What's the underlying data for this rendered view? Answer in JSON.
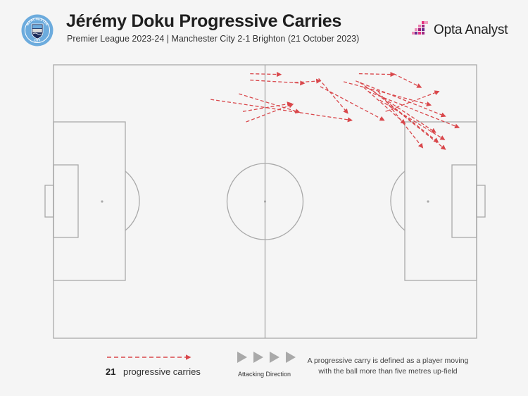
{
  "header": {
    "title": "Jérémy Doku Progressive Carries",
    "subtitle": "Premier League 2023-24 | Manchester City 2-1 Brighton (21 October 2023)",
    "badge_text_top": "MANCHESTER",
    "badge_text_bottom": "CITY",
    "brand": "Opta Analyst"
  },
  "legend": {
    "count": "21",
    "count_label": "progressive carries",
    "direction_label": "Attacking Direction",
    "definition": "A progressive carry is defined as a player moving with the ball more than five metres up-field"
  },
  "colors": {
    "arrow": "#d9474b",
    "pitch_line": "#a9a9a9",
    "club_blue": "#6cabdd",
    "brand_pink": "#e6317f"
  },
  "chart_data": {
    "type": "pitch-arrows",
    "pitch_length": 105,
    "pitch_width": 68,
    "attacking_direction": "right",
    "carries": [
      {
        "x1": 48.8,
        "y1": 2.2,
        "x2": 56.4,
        "y2": 2.4
      },
      {
        "x1": 48.8,
        "y1": 3.8,
        "x2": 62.2,
        "y2": 4.6
      },
      {
        "x1": 59.8,
        "y1": 4.4,
        "x2": 66.2,
        "y2": 4.0
      },
      {
        "x1": 65.8,
        "y1": 3.4,
        "x2": 73.0,
        "y2": 12.0
      },
      {
        "x1": 66.2,
        "y1": 5.4,
        "x2": 82.0,
        "y2": 13.8
      },
      {
        "x1": 75.8,
        "y1": 2.2,
        "x2": 84.6,
        "y2": 2.4
      },
      {
        "x1": 84.4,
        "y1": 2.2,
        "x2": 91.2,
        "y2": 5.6
      },
      {
        "x1": 72.0,
        "y1": 4.2,
        "x2": 93.6,
        "y2": 10.0
      },
      {
        "x1": 75.0,
        "y1": 4.0,
        "x2": 97.2,
        "y2": 12.8
      },
      {
        "x1": 76.0,
        "y1": 4.4,
        "x2": 94.8,
        "y2": 16.8
      },
      {
        "x1": 78.0,
        "y1": 6.6,
        "x2": 100.6,
        "y2": 15.6
      },
      {
        "x1": 79.2,
        "y1": 6.4,
        "x2": 95.4,
        "y2": 19.2
      },
      {
        "x1": 80.6,
        "y1": 6.6,
        "x2": 91.6,
        "y2": 20.6
      },
      {
        "x1": 81.0,
        "y1": 8.8,
        "x2": 97.0,
        "y2": 18.6
      },
      {
        "x1": 82.6,
        "y1": 9.2,
        "x2": 97.2,
        "y2": 21.0
      },
      {
        "x1": 77.0,
        "y1": 5.6,
        "x2": 87.2,
        "y2": 14.6
      },
      {
        "x1": 82.4,
        "y1": 11.6,
        "x2": 95.6,
        "y2": 6.6
      },
      {
        "x1": 46.0,
        "y1": 7.2,
        "x2": 61.0,
        "y2": 11.8
      },
      {
        "x1": 39.0,
        "y1": 8.6,
        "x2": 74.0,
        "y2": 13.8
      },
      {
        "x1": 47.0,
        "y1": 11.6,
        "x2": 59.0,
        "y2": 9.6
      },
      {
        "x1": 47.8,
        "y1": 14.2,
        "x2": 59.4,
        "y2": 9.8
      }
    ]
  }
}
